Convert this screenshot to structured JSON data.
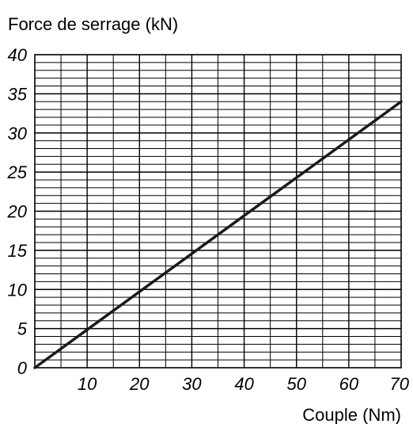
{
  "chart_data": {
    "type": "line",
    "title": "",
    "xlabel": "Couple (Nm)",
    "ylabel": "Force de serrage (kN)",
    "xlim": [
      0,
      70
    ],
    "ylim": [
      0,
      40
    ],
    "x_ticks": [
      10,
      20,
      30,
      40,
      50,
      60,
      70
    ],
    "y_ticks": [
      0,
      5,
      10,
      15,
      20,
      25,
      30,
      35,
      40
    ],
    "x_tick_labels": [
      "10",
      "20",
      "30",
      "40",
      "50",
      "60",
      "70"
    ],
    "y_tick_labels": [
      "0",
      "5",
      "10",
      "15",
      "20",
      "25",
      "30",
      "35",
      "40"
    ],
    "grid": true,
    "grid_x_step": 5,
    "grid_y_step": 1,
    "series": [
      {
        "x": [
          0,
          70
        ],
        "y": [
          0,
          34
        ],
        "color": "#1a1a1a"
      }
    ]
  }
}
